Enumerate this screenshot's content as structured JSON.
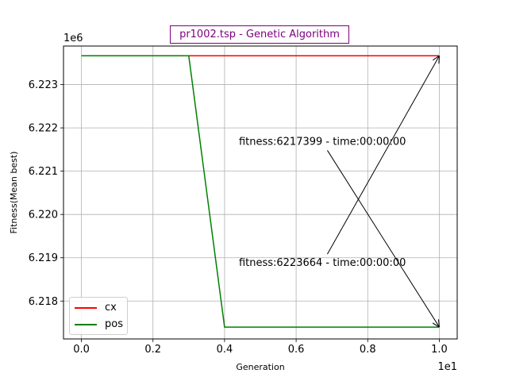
{
  "chart_data": {
    "type": "line",
    "title": "pr1002.tsp - Genetic Algorithm",
    "xlabel": "Generation",
    "ylabel": "Fitness(Mean best)",
    "x_offset_text": "1e1",
    "y_offset_text": "1e6",
    "xlim": [
      -0.5,
      10.5
    ],
    "ylim": [
      6217125,
      6223890
    ],
    "xticks": [
      0,
      2,
      4,
      6,
      8,
      10
    ],
    "xtick_labels": [
      "0.0",
      "0.2",
      "0.4",
      "0.6",
      "0.8",
      "1.0"
    ],
    "yticks": [
      6218000,
      6219000,
      6220000,
      6221000,
      6222000,
      6223000
    ],
    "ytick_labels": [
      "6.218",
      "6.219",
      "6.220",
      "6.221",
      "6.222",
      "6.223"
    ],
    "grid": true,
    "legend_position": "lower-left",
    "series": [
      {
        "name": "cx",
        "color": "#ff0000",
        "x": [
          0,
          1,
          2,
          3,
          4,
          5,
          6,
          7,
          8,
          9,
          10
        ],
        "y": [
          6223664,
          6223664,
          6223664,
          6223664,
          6223664,
          6223664,
          6223664,
          6223664,
          6223664,
          6223664,
          6223664
        ]
      },
      {
        "name": "pos",
        "color": "#008000",
        "x": [
          0,
          1,
          2,
          3,
          4,
          5,
          6,
          7,
          8,
          9,
          10
        ],
        "y": [
          6223664,
          6223664,
          6223664,
          6223664,
          6217399,
          6217399,
          6217399,
          6217399,
          6217399,
          6217399,
          6217399
        ]
      }
    ],
    "annotations": [
      {
        "text": "fitness:6217399 - time:00:00:00",
        "text_x": 4.4,
        "text_y": 6221700,
        "target_x": 10,
        "target_y": 6217399
      },
      {
        "text": "fitness:6223664 - time:00:00:00",
        "text_x": 4.4,
        "text_y": 6218900,
        "target_x": 10,
        "target_y": 6223664
      }
    ]
  }
}
